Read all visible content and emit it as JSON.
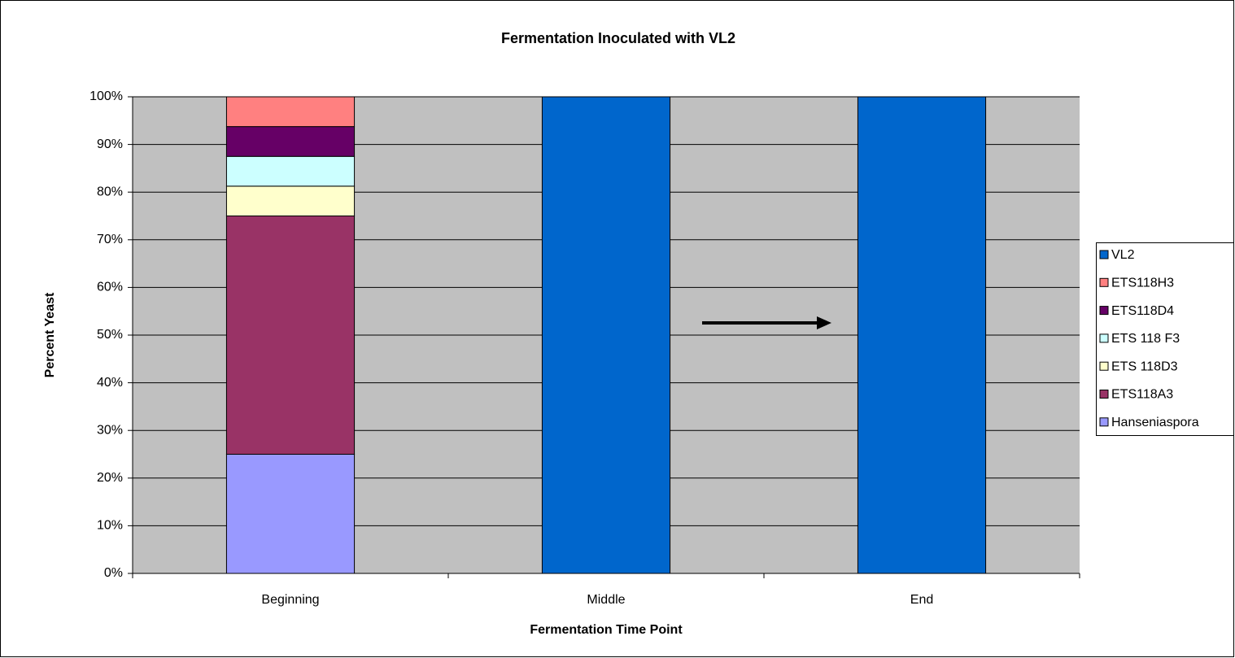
{
  "chart_data": {
    "type": "stacked_bar",
    "title": "Fermentation Inoculated with VL2",
    "x_label": "Fermentation Time Point",
    "y_label": "Percent Yeast",
    "categories": [
      "Beginning",
      "Middle",
      "End"
    ],
    "series": [
      {
        "name": "Hanseniaspora",
        "color": "#9999ff",
        "values": [
          25,
          0,
          0
        ]
      },
      {
        "name": "ETS118A3",
        "color": "#993366",
        "values": [
          50,
          0,
          0
        ]
      },
      {
        "name": "ETS 118D3",
        "color": "#ffffcc",
        "values": [
          6.25,
          0,
          0
        ]
      },
      {
        "name": "ETS 118 F3",
        "color": "#ccffff",
        "values": [
          6.25,
          0,
          0
        ]
      },
      {
        "name": "ETS118D4",
        "color": "#660066",
        "values": [
          6.25,
          0,
          0
        ]
      },
      {
        "name": "ETS118H3",
        "color": "#ff8080",
        "values": [
          6.25,
          0,
          0
        ]
      },
      {
        "name": "VL2",
        "color": "#0066cc",
        "values": [
          0,
          100,
          100
        ]
      }
    ],
    "ylim": [
      0,
      100
    ],
    "yticks": [
      {
        "value": 0,
        "label": "0%"
      },
      {
        "value": 10,
        "label": "10%"
      },
      {
        "value": 20,
        "label": "20%"
      },
      {
        "value": 30,
        "label": "30%"
      },
      {
        "value": 40,
        "label": "40%"
      },
      {
        "value": 50,
        "label": "50%"
      },
      {
        "value": 60,
        "label": "60%"
      },
      {
        "value": 70,
        "label": "70%"
      },
      {
        "value": 80,
        "label": "80%"
      },
      {
        "value": 90,
        "label": "90%"
      },
      {
        "value": 100,
        "label": "100%"
      }
    ],
    "grid": true,
    "legend": "right",
    "plot_background": "#c0c0c0"
  }
}
